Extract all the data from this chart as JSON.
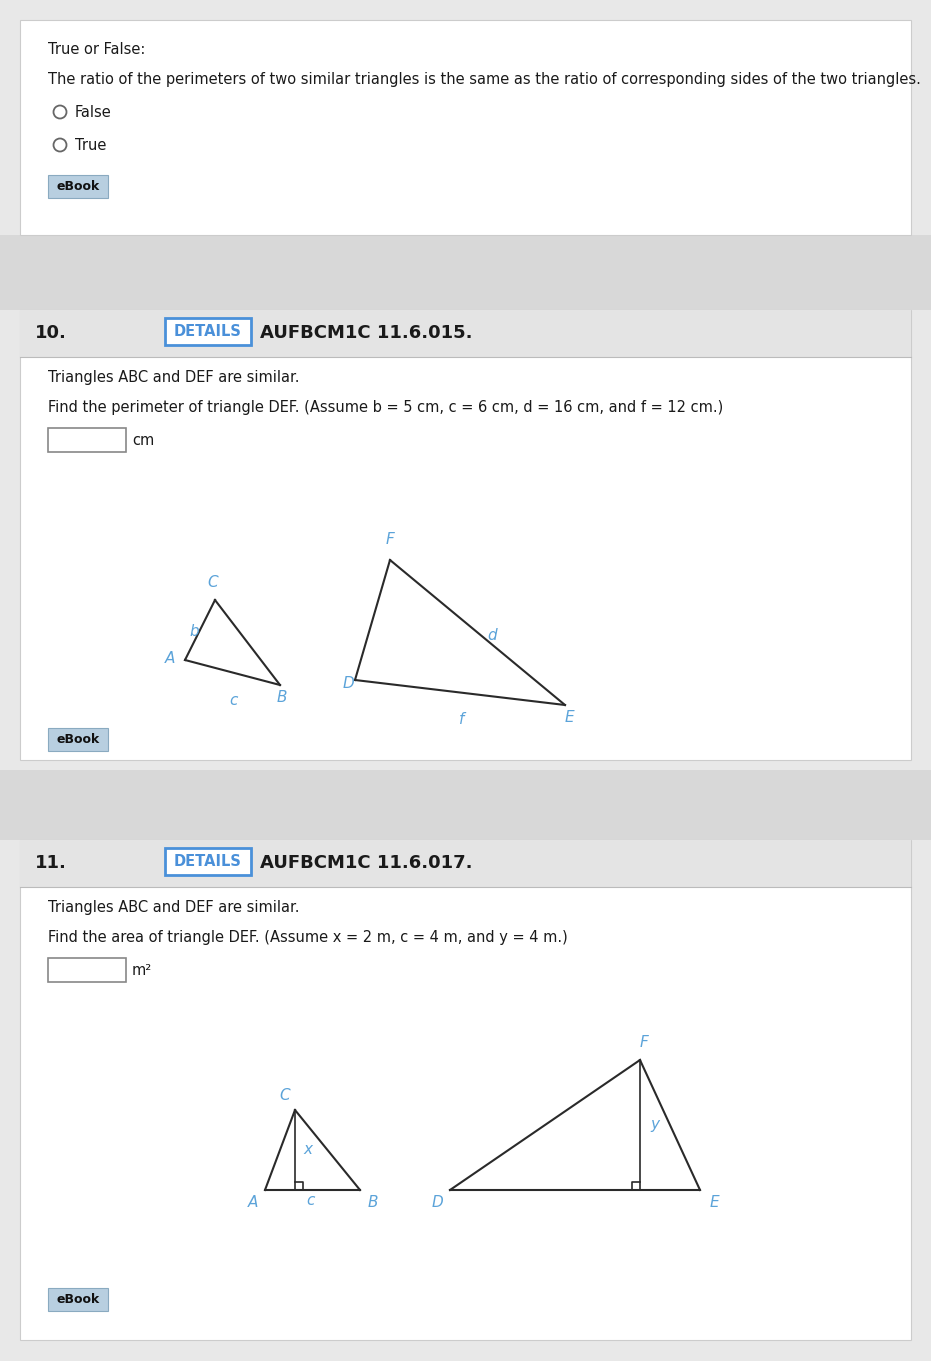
{
  "bg_outer": "#e8e8e8",
  "bg_white": "#ffffff",
  "bg_gray_strip": "#d8d8d8",
  "true_false_label": "True or False:",
  "tf_question": "The ratio of the perimeters of two similar triangles is the same as the ratio of corresponding sides of the two triangles.",
  "tf_false": "False",
  "tf_true": "True",
  "ebook_btn_color": "#b8cfe0",
  "ebook_text": "eBook",
  "q10_number": "10.",
  "details_text": "DETAILS",
  "details_border": "#4a90d9",
  "q10_code": "AUFBCM1C 11.6.015.",
  "q10_similar": "Triangles ABC and DEF are similar.",
  "q10_find": "Find the perimeter of triangle DEF. (Assume b = 5 cm, c = 6 cm, d = 16 cm, and f = 12 cm.)",
  "q10_unit": "cm",
  "q11_number": "11.",
  "q11_code": "AUFBCM1C 11.6.017.",
  "q11_similar": "Triangles ABC and DEF are similar.",
  "q11_find": "Find the area of triangle DEF. (Assume x = 2 m, c = 4 m, and y = 4 m.)",
  "q11_unit": "m²",
  "triangle_color": "#2a2a2a",
  "label_color": "#5ba3d9",
  "text_color": "#1a1a1a",
  "sep_color": "#bbbbbb",
  "section_border": "#cccccc"
}
